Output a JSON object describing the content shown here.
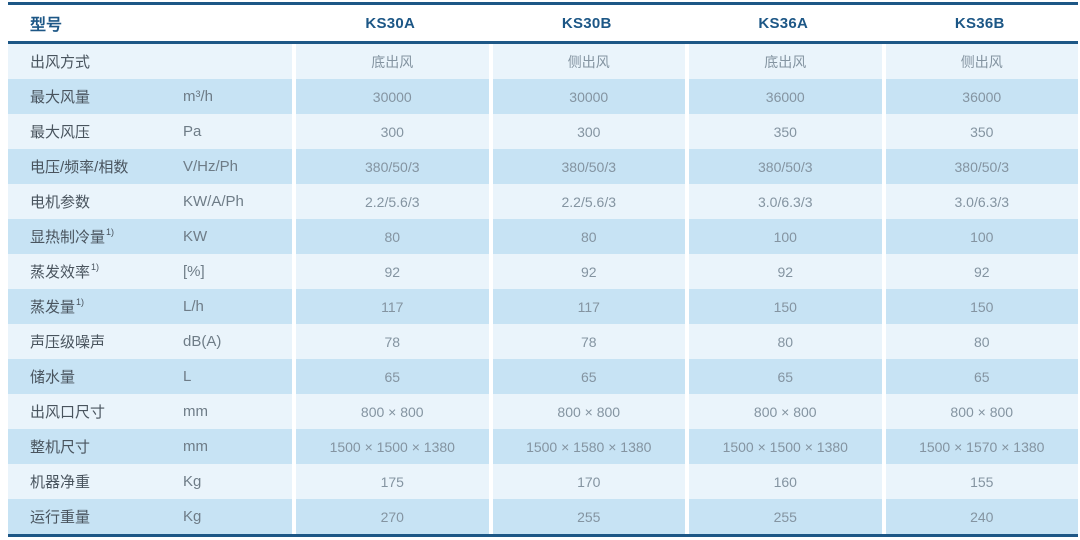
{
  "colors": {
    "accent_navy": "#1d5786",
    "row_light": "#eaf4fb",
    "row_dark": "#c7e3f4",
    "value_text": "#8494a1",
    "label_text": "#49545e"
  },
  "table": {
    "header": {
      "model_label": "型号",
      "models": [
        "KS30A",
        "KS30B",
        "KS36A",
        "KS36B"
      ]
    },
    "rows": [
      {
        "label": "出风方式",
        "sup": "",
        "unit": "",
        "values": [
          "底出风",
          "侧出风",
          "底出风",
          "侧出风"
        ]
      },
      {
        "label": "最大风量",
        "sup": "",
        "unit": "m³/h",
        "values": [
          "30000",
          "30000",
          "36000",
          "36000"
        ]
      },
      {
        "label": "最大风压",
        "sup": "",
        "unit": "Pa",
        "values": [
          "300",
          "300",
          "350",
          "350"
        ]
      },
      {
        "label": "电压/频率/相数",
        "sup": "",
        "unit": "V/Hz/Ph",
        "values": [
          "380/50/3",
          "380/50/3",
          "380/50/3",
          "380/50/3"
        ]
      },
      {
        "label": "电机参数",
        "sup": "",
        "unit": "KW/A/Ph",
        "values": [
          "2.2/5.6/3",
          "2.2/5.6/3",
          "3.0/6.3/3",
          "3.0/6.3/3"
        ]
      },
      {
        "label": "显热制冷量",
        "sup": "1)",
        "unit": "KW",
        "values": [
          "80",
          "80",
          "100",
          "100"
        ]
      },
      {
        "label": "蒸发效率",
        "sup": "1)",
        "unit": "[%]",
        "values": [
          "92",
          "92",
          "92",
          "92"
        ]
      },
      {
        "label": "蒸发量",
        "sup": "1)",
        "unit": "L/h",
        "values": [
          "117",
          "117",
          "150",
          "150"
        ]
      },
      {
        "label": "声压级噪声",
        "sup": "",
        "unit": "dB(A)",
        "values": [
          "78",
          "78",
          "80",
          "80"
        ]
      },
      {
        "label": "储水量",
        "sup": "",
        "unit": "L",
        "values": [
          "65",
          "65",
          "65",
          "65"
        ]
      },
      {
        "label": "出风口尺寸",
        "sup": "",
        "unit": "mm",
        "values": [
          "800 × 800",
          "800 × 800",
          "800 × 800",
          "800 × 800"
        ]
      },
      {
        "label": "整机尺寸",
        "sup": "",
        "unit": "mm",
        "values": [
          "1500 × 1500 × 1380",
          "1500 × 1580 × 1380",
          "1500 × 1500 × 1380",
          "1500 × 1570 × 1380"
        ]
      },
      {
        "label": "机器净重",
        "sup": "",
        "unit": "Kg",
        "values": [
          "175",
          "170",
          "160",
          "155"
        ]
      },
      {
        "label": "运行重量",
        "sup": "",
        "unit": "Kg",
        "values": [
          "270",
          "255",
          "255",
          "240"
        ]
      }
    ]
  }
}
